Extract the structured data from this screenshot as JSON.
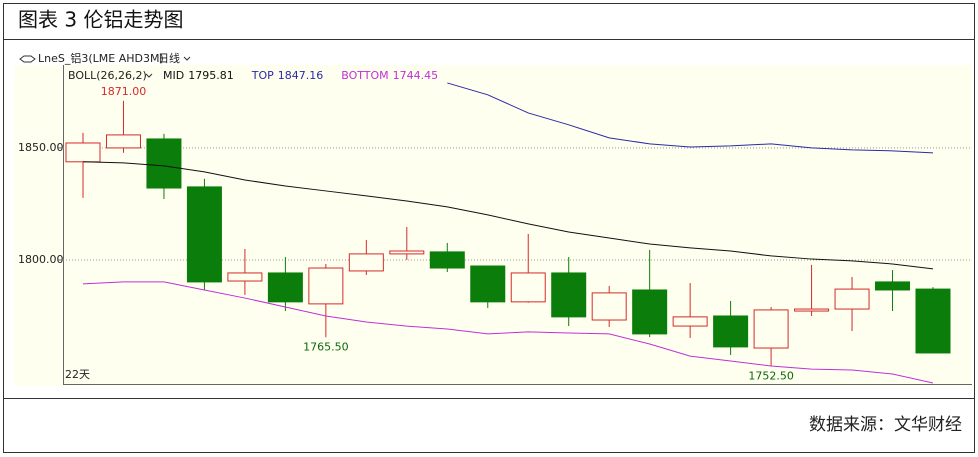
{
  "chart_data": {
    "type": "candlestick",
    "title": "图表 3 伦铝走势图",
    "symbol": "LneS_铝3(LME AHD3M)",
    "period": "日线",
    "indicator": "BOLL(26,26,2)",
    "note": "22天",
    "source": "数据来源：文华财经",
    "open": [
      1843.8,
      1850.0,
      1854.0,
      1832.6,
      1790.6,
      1794.2,
      1780.4,
      1795.1,
      1802.7,
      1803.6,
      1797.3,
      1781.3,
      1794.2,
      1773.2,
      1786.6,
      1770.5,
      1775.0,
      1760.7,
      1777.2,
      1778.1,
      1790.2,
      1787.0
    ],
    "high": [
      1856.7,
      1871.0,
      1856.3,
      1836.2,
      1804.9,
      1801.3,
      1798.2,
      1808.9,
      1814.7,
      1807.6,
      1797.3,
      1811.6,
      1801.3,
      1788.4,
      1804.5,
      1789.7,
      1781.7,
      1779.0,
      1797.8,
      1792.4,
      1795.5,
      1787.9
    ],
    "low": [
      1827.7,
      1847.8,
      1827.2,
      1786.6,
      1784.4,
      1777.2,
      1765.5,
      1793.3,
      1800.0,
      1794.6,
      1778.6,
      1780.9,
      1770.5,
      1770.1,
      1765.6,
      1765.2,
      1757.6,
      1752.5,
      1775.0,
      1768.3,
      1777.2,
      1758.5
    ],
    "close": [
      1852.2,
      1855.8,
      1832.1,
      1790.2,
      1794.2,
      1781.3,
      1796.4,
      1802.7,
      1804.0,
      1796.4,
      1781.3,
      1794.2,
      1774.6,
      1785.3,
      1767.0,
      1774.6,
      1761.2,
      1777.7,
      1778.1,
      1787.0,
      1786.6,
      1758.5
    ],
    "high_labels": [
      null,
      "1871.00",
      null,
      null,
      null,
      null,
      null,
      null,
      null,
      null,
      null,
      null,
      null,
      null,
      null,
      null,
      null,
      null,
      null,
      null,
      null,
      null
    ],
    "low_labels": [
      null,
      null,
      null,
      null,
      null,
      null,
      "1765.50",
      null,
      null,
      null,
      null,
      null,
      null,
      null,
      null,
      null,
      null,
      "1752.50",
      null,
      null,
      null,
      null
    ],
    "up_color": "#d42a2a",
    "down_color": "#0a7d0a",
    "lines": [
      {
        "name": "MID",
        "legend_value": "1795.81",
        "color": "#111111",
        "values": [
          1843.8,
          1843.3,
          1842.0,
          1839.3,
          1835.7,
          1833.0,
          1830.8,
          1828.6,
          1826.3,
          1823.7,
          1820.1,
          1816.1,
          1812.5,
          1809.8,
          1807.1,
          1805.4,
          1804.0,
          1801.8,
          1800.4,
          1799.6,
          1798.2,
          1796.0
        ]
      },
      {
        "name": "TOP",
        "legend_value": "1847.16",
        "color": "#2a2aa8",
        "values": [
          null,
          null,
          null,
          null,
          null,
          null,
          null,
          null,
          null,
          1879.0,
          1873.7,
          1865.6,
          1860.3,
          1854.5,
          1851.8,
          1850.4,
          1850.9,
          1851.8,
          1850.0,
          1849.1,
          1848.7,
          1847.8
        ]
      },
      {
        "name": "BOTTOM",
        "legend_value": "1744.45",
        "color": "#c030d8",
        "values": [
          1789.3,
          1790.2,
          1790.2,
          1786.6,
          1783.0,
          1779.0,
          1775.0,
          1772.3,
          1770.5,
          1769.2,
          1767.0,
          1767.9,
          1767.4,
          1767.0,
          1762.5,
          1757.1,
          1754.9,
          1752.7,
          1751.3,
          1750.9,
          1749.1,
          1745.1
        ]
      }
    ],
    "ylim": [
      1744.2,
      1887
    ],
    "yticks": [
      {
        "value": 1800,
        "label": "1800.00"
      },
      {
        "value": 1850,
        "label": "1850.00"
      }
    ],
    "grid": true
  }
}
